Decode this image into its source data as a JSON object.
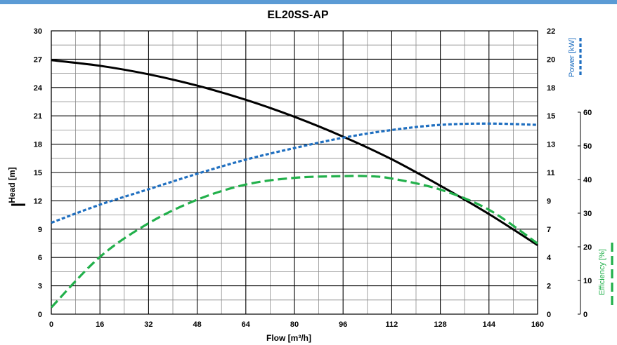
{
  "chart_data": {
    "type": "line",
    "title": "EL20SS-AP",
    "xlabel": "Flow [m³/h]",
    "ylabel": "Head [m]",
    "y2label": "Power [kW]",
    "y3label": "Efficiency [%]",
    "xlim": [
      0,
      160
    ],
    "ylim": [
      0,
      30
    ],
    "y2lim": [
      0,
      22
    ],
    "y3lim": [
      0,
      60
    ],
    "grid": true,
    "x_ticks": [
      "0",
      "16",
      "32",
      "48",
      "64",
      "80",
      "96",
      "112",
      "128",
      "144",
      "160"
    ],
    "y_ticks": [
      "0",
      "3",
      "6",
      "9",
      "12",
      "15",
      "18",
      "21",
      "24",
      "27",
      "30"
    ],
    "y2_ticks": [
      "0",
      "2",
      "4",
      "7",
      "9",
      "11",
      "13",
      "15",
      "18",
      "20",
      "22"
    ],
    "y3_ticks": [
      "0",
      "10",
      "20",
      "30",
      "40",
      "50",
      "60"
    ],
    "series": [
      {
        "name": "Head",
        "axis": "head",
        "color": "#000000",
        "dash": "solid",
        "x": [
          0,
          16,
          32,
          48,
          64,
          80,
          96,
          112,
          128,
          144,
          160
        ],
        "values": [
          26.9,
          26.3,
          25.4,
          24.2,
          22.7,
          20.9,
          18.8,
          16.4,
          13.6,
          10.6,
          7.3
        ]
      },
      {
        "name": "Power",
        "axis": "power",
        "color": "#1f6fc0",
        "dash": "short",
        "x": [
          0,
          16,
          32,
          48,
          64,
          80,
          96,
          112,
          128,
          144,
          160
        ],
        "values": [
          7.1,
          8.5,
          9.7,
          10.9,
          12.0,
          12.9,
          13.7,
          14.3,
          14.7,
          14.8,
          14.7
        ]
      },
      {
        "name": "Efficiency",
        "axis": "efficiency",
        "color": "#22b04b",
        "dash": "long",
        "x": [
          0,
          16,
          32,
          48,
          64,
          80,
          96,
          104,
          112,
          128,
          144,
          160
        ],
        "values": [
          2,
          17,
          27,
          34,
          38.5,
          40.5,
          41,
          41,
          40.3,
          37,
          31,
          21
        ]
      }
    ]
  }
}
